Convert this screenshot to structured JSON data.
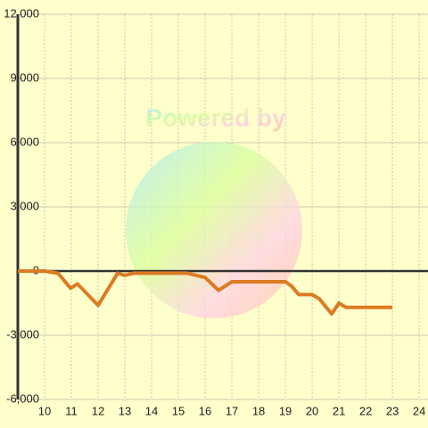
{
  "chart_data": {
    "type": "line",
    "watermark": "Powered by",
    "x": [
      9.0,
      10.0,
      10.5,
      10.97,
      11.23,
      12.0,
      12.73,
      13.0,
      13.33,
      15.33,
      16.0,
      16.5,
      17.0,
      19.0,
      19.23,
      19.5,
      20.0,
      20.27,
      20.73,
      21.0,
      21.27,
      23.0
    ],
    "series": [
      {
        "color": "#dc7b22",
        "values": [
          0,
          0,
          -100,
          -800,
          -600,
          -1600,
          -100,
          -200,
          -100,
          -100,
          -300,
          -900,
          -500,
          -500,
          -700,
          -1100,
          -1100,
          -1300,
          -2000,
          -1500,
          -1700,
          -1700
        ]
      }
    ],
    "xlim": [
      9,
      24.33
    ],
    "xticks": [
      10,
      11,
      12,
      13,
      14,
      15,
      16,
      17,
      18,
      19,
      20,
      21,
      22,
      23,
      24
    ],
    "ylim": [
      -6000,
      12000
    ],
    "yticks": [
      {
        "value": -6000,
        "label": "-6,000"
      },
      {
        "value": -3000,
        "label": "-3,000"
      },
      0,
      {
        "value": 3000,
        "label": "3,000"
      },
      {
        "value": 6000,
        "label": "6,000"
      },
      {
        "value": 9000,
        "label": "9,000"
      },
      {
        "value": 12000,
        "label": "12,000"
      }
    ],
    "grid": true
  }
}
